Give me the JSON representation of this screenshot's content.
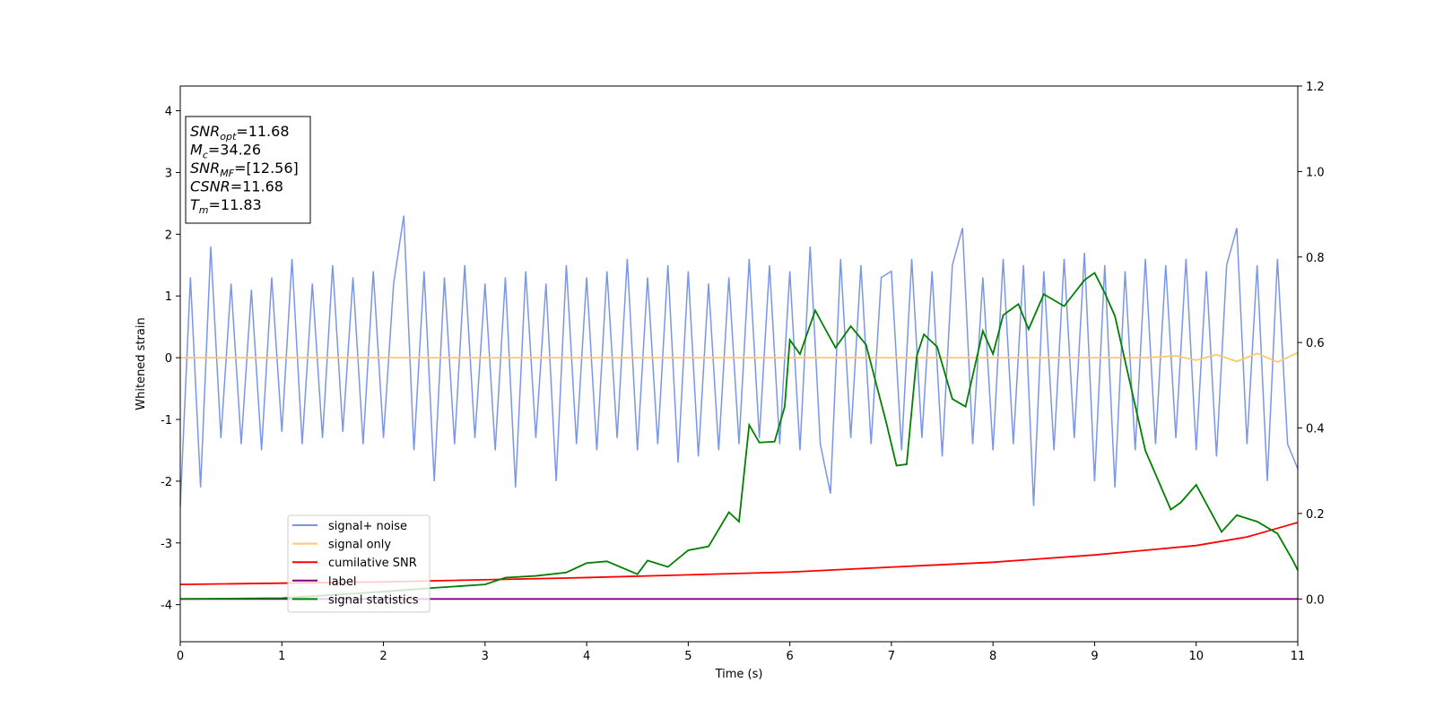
{
  "chart_data": {
    "type": "line",
    "xlabel": "Time (s)",
    "ylabel": "Whitened strain",
    "xlim": [
      0,
      11
    ],
    "ylim": [
      -4.6,
      4.4
    ],
    "y2lim": [
      -0.1,
      1.2
    ],
    "xticks": [
      0,
      1,
      2,
      3,
      4,
      5,
      6,
      7,
      8,
      9,
      10,
      11
    ],
    "yticks": [
      -4,
      -3,
      -2,
      -1,
      0,
      1,
      2,
      3,
      4
    ],
    "y2ticks": [
      {
        "value": 0,
        "label": "0.0"
      },
      0.2,
      0.4,
      0.6,
      0.8,
      {
        "value": 1,
        "label": "1.0"
      },
      1.2
    ],
    "legend": "lower left",
    "annotations": [
      {
        "text": "SNR",
        "sub": "opt",
        "rest": "=11.68"
      },
      {
        "text": "M",
        "sub": "c",
        "rest": "=34.26"
      },
      {
        "text": "SNR",
        "sub": "MF",
        "rest": "=[12.56]"
      },
      {
        "text": "CSNR",
        "rest": "=11.68"
      },
      {
        "text": "T",
        "sub": "m",
        "rest": "=11.83"
      }
    ],
    "series": [
      {
        "name": "signal+ noise",
        "color": "#7b96e8",
        "axis": "y",
        "x": [
          0,
          0.1,
          0.2,
          0.3,
          0.4,
          0.5,
          0.6,
          0.7,
          0.8,
          0.9,
          1,
          1.1,
          1.2,
          1.3,
          1.4,
          1.5,
          1.6,
          1.7,
          1.8,
          1.9,
          2,
          2.1,
          2.2,
          2.3,
          2.4,
          2.5,
          2.6,
          2.7,
          2.8,
          2.9,
          3,
          3.1,
          3.2,
          3.3,
          3.4,
          3.5,
          3.6,
          3.7,
          3.8,
          3.9,
          4,
          4.1,
          4.2,
          4.3,
          4.4,
          4.5,
          4.6,
          4.7,
          4.8,
          4.9,
          5,
          5.1,
          5.2,
          5.3,
          5.4,
          5.5,
          5.6,
          5.7,
          5.8,
          5.9,
          6,
          6.1,
          6.2,
          6.3,
          6.4,
          6.5,
          6.6,
          6.7,
          6.8,
          6.9,
          7,
          7.1,
          7.2,
          7.3,
          7.4,
          7.5,
          7.6,
          7.7,
          7.8,
          7.9,
          8,
          8.1,
          8.2,
          8.3,
          8.4,
          8.5,
          8.6,
          8.7,
          8.8,
          8.9,
          9,
          9.1,
          9.2,
          9.3,
          9.4,
          9.5,
          9.6,
          9.7,
          9.8,
          9.9,
          10,
          10.1,
          10.2,
          10.3,
          10.4,
          10.5,
          10.6,
          10.7,
          10.8,
          10.9,
          11
        ],
        "values": [
          -2.4,
          1.3,
          -2.1,
          1.8,
          -1.3,
          1.2,
          -1.4,
          1.1,
          -1.5,
          1.3,
          -1.2,
          1.6,
          -1.4,
          1.2,
          -1.3,
          1.5,
          -1.2,
          1.3,
          -1.4,
          1.4,
          -1.3,
          1.2,
          2.3,
          -1.5,
          1.4,
          -2.0,
          1.3,
          -1.4,
          1.5,
          -1.3,
          1.2,
          -1.5,
          1.3,
          -2.1,
          1.4,
          -1.3,
          1.2,
          -2.0,
          1.5,
          -1.4,
          1.3,
          -1.5,
          1.4,
          -1.3,
          1.6,
          -1.5,
          1.3,
          -1.4,
          1.5,
          -1.7,
          1.4,
          -1.6,
          1.2,
          -1.5,
          1.3,
          -1.4,
          1.6,
          -1.3,
          1.5,
          -1.4,
          1.4,
          -1.5,
          1.8,
          -1.4,
          -2.2,
          1.6,
          -1.3,
          1.5,
          -1.4,
          1.3,
          1.4,
          -1.5,
          1.6,
          -1.3,
          1.4,
          -1.6,
          1.5,
          2.1,
          -1.4,
          1.3,
          -1.5,
          1.6,
          -1.4,
          1.5,
          -2.4,
          1.4,
          -1.5,
          1.6,
          -1.3,
          1.7,
          -2.0,
          1.5,
          -2.1,
          1.4,
          -1.5,
          1.6,
          -1.4,
          1.5,
          -1.3,
          1.6,
          -1.5,
          1.4,
          -1.6,
          1.5,
          2.1,
          -1.4,
          1.5,
          -2.0,
          1.6,
          -1.4,
          -1.8
        ]
      },
      {
        "name": "signal only",
        "color": "#ffc870",
        "axis": "y",
        "x": [
          0,
          9.5,
          9.8,
          10,
          10.2,
          10.4,
          10.6,
          10.8,
          11
        ],
        "values": [
          0,
          0,
          0.03,
          -0.04,
          0.05,
          -0.06,
          0.07,
          -0.07,
          0.08
        ]
      },
      {
        "name": "cumilative SNR",
        "color": "#ff0000",
        "axis": "y2",
        "x": [
          0,
          2,
          4,
          6,
          8,
          9,
          10,
          10.5,
          11
        ],
        "values": [
          0.034,
          0.04,
          0.05,
          0.063,
          0.086,
          0.103,
          0.125,
          0.145,
          0.179
        ]
      },
      {
        "name": "label",
        "color": "#800080",
        "axis": "y2",
        "x": [
          0,
          11
        ],
        "values": [
          0,
          0
        ]
      },
      {
        "name": "signal statistics",
        "color": "#008000",
        "axis": "y2",
        "x": [
          0,
          1,
          2,
          2.5,
          3,
          3.2,
          3.5,
          3.8,
          4,
          4.2,
          4.5,
          4.6,
          4.8,
          5,
          5.2,
          5.4,
          5.5,
          5.6,
          5.7,
          5.85,
          5.95,
          6,
          6.1,
          6.25,
          6.35,
          6.45,
          6.6,
          6.75,
          6.95,
          7.05,
          7.15,
          7.25,
          7.32,
          7.45,
          7.6,
          7.73,
          7.8,
          7.9,
          8,
          8.1,
          8.25,
          8.35,
          8.5,
          8.7,
          8.9,
          9,
          9.1,
          9.2,
          9.5,
          9.75,
          9.85,
          10,
          10.25,
          10.4,
          10.6,
          10.8,
          10.95,
          11
        ],
        "values": [
          0,
          0.002,
          0.017,
          0.026,
          0.034,
          0.05,
          0.054,
          0.062,
          0.084,
          0.088,
          0.058,
          0.09,
          0.075,
          0.114,
          0.123,
          0.203,
          0.181,
          0.407,
          0.366,
          0.368,
          0.45,
          0.606,
          0.573,
          0.675,
          0.631,
          0.588,
          0.638,
          0.595,
          0.412,
          0.312,
          0.315,
          0.569,
          0.619,
          0.59,
          0.468,
          0.45,
          0.522,
          0.627,
          0.573,
          0.664,
          0.69,
          0.631,
          0.713,
          0.685,
          0.746,
          0.763,
          0.716,
          0.662,
          0.347,
          0.209,
          0.226,
          0.267,
          0.157,
          0.196,
          0.181,
          0.153,
          0.091,
          0.067
        ]
      }
    ]
  }
}
